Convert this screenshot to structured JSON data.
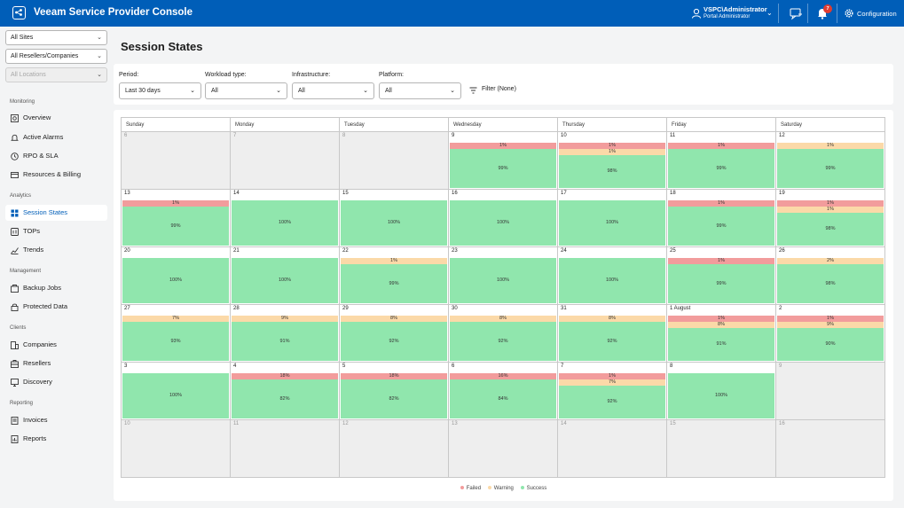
{
  "app": {
    "title": "Veeam Service Provider Console"
  },
  "header": {
    "user_name": "VSPC\\Administrator",
    "user_role": "Portal Administrator",
    "notification_count": "7",
    "config_label": "Configuration"
  },
  "sidebar": {
    "site_select": "All Sites",
    "reseller_select": "All Resellers/Companies",
    "location_select": "All Locations",
    "sections": {
      "monitoring": "Monitoring",
      "analytics": "Analytics",
      "management": "Management",
      "clients": "Clients",
      "reporting": "Reporting"
    },
    "items": {
      "overview": "Overview",
      "alarms": "Active Alarms",
      "rpo": "RPO & SLA",
      "resources": "Resources & Billing",
      "session_states": "Session States",
      "tops": "TOPs",
      "trends": "Trends",
      "backup_jobs": "Backup Jobs",
      "protected_data": "Protected Data",
      "companies": "Companies",
      "resellers": "Resellers",
      "discovery": "Discovery",
      "invoices": "Invoices",
      "reports": "Reports"
    }
  },
  "main": {
    "title": "Session States",
    "filters": {
      "period_label": "Period:",
      "period_value": "Last 30 days",
      "workload_label": "Workload type:",
      "workload_value": "All",
      "infra_label": "Infrastructure:",
      "infra_value": "All",
      "platform_label": "Platform:",
      "platform_value": "All",
      "filter_button": "Filter (None)"
    }
  },
  "calendar": {
    "days": [
      "Sunday",
      "Monday",
      "Tuesday",
      "Wednesday",
      "Thursday",
      "Friday",
      "Saturday"
    ],
    "weeks": [
      [
        {
          "d": "6",
          "out": true
        },
        {
          "d": "7",
          "out": true
        },
        {
          "d": "8",
          "out": true
        },
        {
          "d": "9",
          "f": "1%",
          "s": "99%"
        },
        {
          "d": "10",
          "f": "1%",
          "w": "1%",
          "s": "98%"
        },
        {
          "d": "11",
          "f": "1%",
          "s": "99%"
        },
        {
          "d": "12",
          "w": "1%",
          "s": "99%"
        }
      ],
      [
        {
          "d": "13",
          "f": "1%",
          "s": "99%"
        },
        {
          "d": "14",
          "s": "100%"
        },
        {
          "d": "15",
          "s": "100%"
        },
        {
          "d": "16",
          "s": "100%"
        },
        {
          "d": "17",
          "s": "100%"
        },
        {
          "d": "18",
          "f": "1%",
          "s": "99%"
        },
        {
          "d": "19",
          "f": "1%",
          "w": "1%",
          "s": "98%"
        }
      ],
      [
        {
          "d": "20",
          "s": "100%"
        },
        {
          "d": "21",
          "s": "100%"
        },
        {
          "d": "22",
          "w": "1%",
          "s": "99%"
        },
        {
          "d": "23",
          "s": "100%"
        },
        {
          "d": "24",
          "s": "100%"
        },
        {
          "d": "25",
          "f": "1%",
          "s": "99%"
        },
        {
          "d": "26",
          "w": "2%",
          "s": "98%"
        }
      ],
      [
        {
          "d": "27",
          "w": "7%",
          "s": "93%"
        },
        {
          "d": "28",
          "w": "9%",
          "s": "91%"
        },
        {
          "d": "29",
          "w": "8%",
          "s": "92%"
        },
        {
          "d": "30",
          "w": "8%",
          "s": "92%"
        },
        {
          "d": "31",
          "w": "8%",
          "s": "92%"
        },
        {
          "d": "1 August",
          "f": "1%",
          "w": "8%",
          "s": "91%"
        },
        {
          "d": "2",
          "f": "1%",
          "w": "9%",
          "s": "90%"
        }
      ],
      [
        {
          "d": "3",
          "s": "100%"
        },
        {
          "d": "4",
          "f": "18%",
          "s": "82%"
        },
        {
          "d": "5",
          "f": "18%",
          "s": "82%"
        },
        {
          "d": "6",
          "f": "16%",
          "s": "84%"
        },
        {
          "d": "7",
          "f": "1%",
          "w": "7%",
          "s": "92%"
        },
        {
          "d": "8",
          "s": "100%"
        },
        {
          "d": "9",
          "out": true
        }
      ],
      [
        {
          "d": "10",
          "out": true
        },
        {
          "d": "11",
          "out": true
        },
        {
          "d": "12",
          "out": true
        },
        {
          "d": "13",
          "out": true
        },
        {
          "d": "14",
          "out": true
        },
        {
          "d": "15",
          "out": true
        },
        {
          "d": "16",
          "out": true
        }
      ]
    ],
    "legend": {
      "failed": "Failed",
      "warning": "Warning",
      "success": "Success"
    },
    "colors": {
      "failed": "#f29c9c",
      "warning": "#fbd9a8",
      "success": "#90e6ad",
      "accent": "#005eb8"
    }
  }
}
